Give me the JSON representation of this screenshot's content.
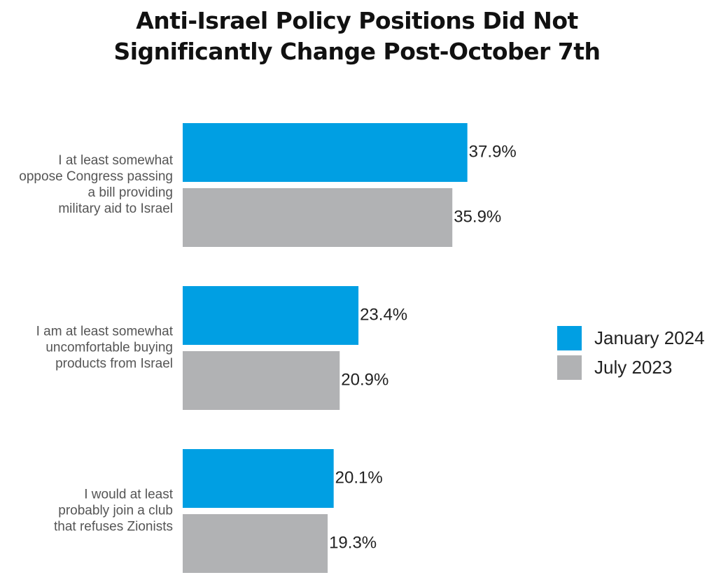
{
  "title_lines": [
    "Anti-Israel Policy Positions Did Not",
    "Significantly Change Post-October 7th"
  ],
  "legend": [
    {
      "label": "January 2024",
      "color": "#009FE3"
    },
    {
      "label": "July 2023",
      "color": "#B1B2B4"
    }
  ],
  "chart_data": {
    "type": "bar",
    "orientation": "horizontal",
    "title": "Anti-Israel Policy Positions Did Not Significantly Change Post-October 7th",
    "categories": [
      [
        "I at least somewhat",
        "oppose Congress passing",
        "a bill providing",
        "military aid to Israel"
      ],
      [
        "I am at least somewhat",
        "uncomfortable buying",
        "products from Israel"
      ],
      [
        "I would at least",
        "probably join a club",
        "that refuses Zionists"
      ]
    ],
    "series": [
      {
        "name": "January 2024",
        "color": "#009FE3",
        "values": [
          37.9,
          23.4,
          20.1
        ],
        "labels": [
          "37.9%",
          "23.4%",
          "20.1%"
        ]
      },
      {
        "name": "July 2023",
        "color": "#B1B2B4",
        "values": [
          35.9,
          20.9,
          19.3
        ],
        "labels": [
          "35.9%",
          "20.9%",
          "19.3%"
        ]
      }
    ],
    "value_unit": "%",
    "legend_position": "right",
    "grid": false
  }
}
